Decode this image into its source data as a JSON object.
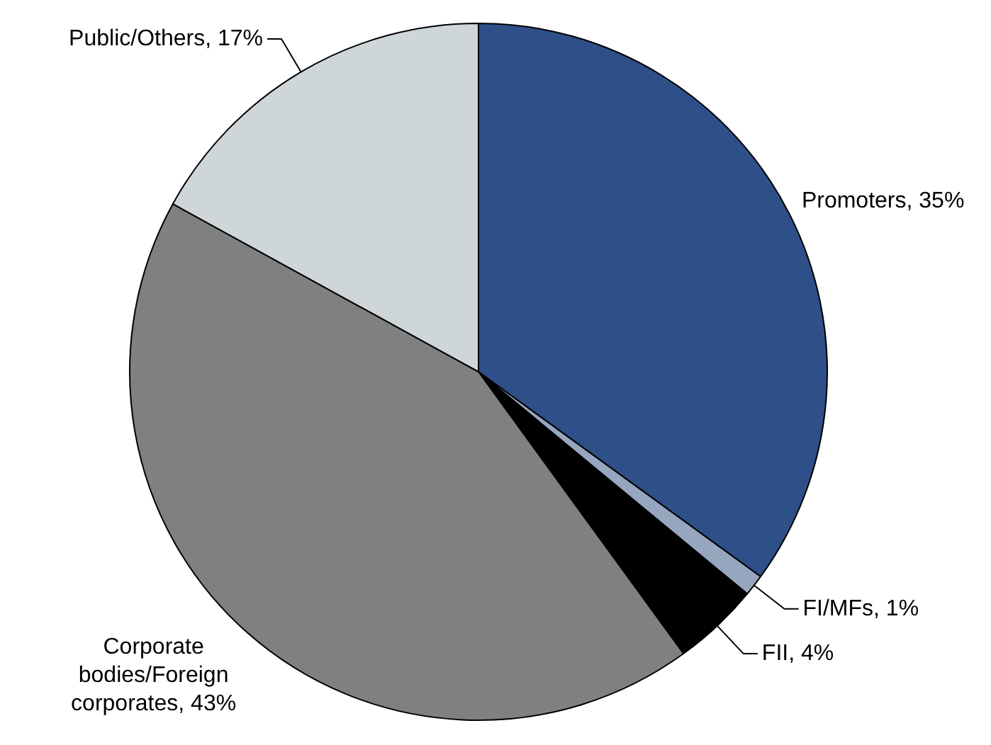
{
  "chart_data": {
    "type": "pie",
    "categories": [
      "Promoters",
      "FI/MFs",
      "FII",
      "Corporate bodies/Foreign corporates",
      "Public/Others"
    ],
    "values": [
      35,
      1,
      4,
      43,
      17
    ],
    "colors": [
      "#2f4f88",
      "#96a6be",
      "#000000",
      "#808080",
      "#cfd6d9"
    ],
    "value_labels": [
      "35%",
      "1%",
      "4%",
      "43%",
      "17%"
    ]
  }
}
